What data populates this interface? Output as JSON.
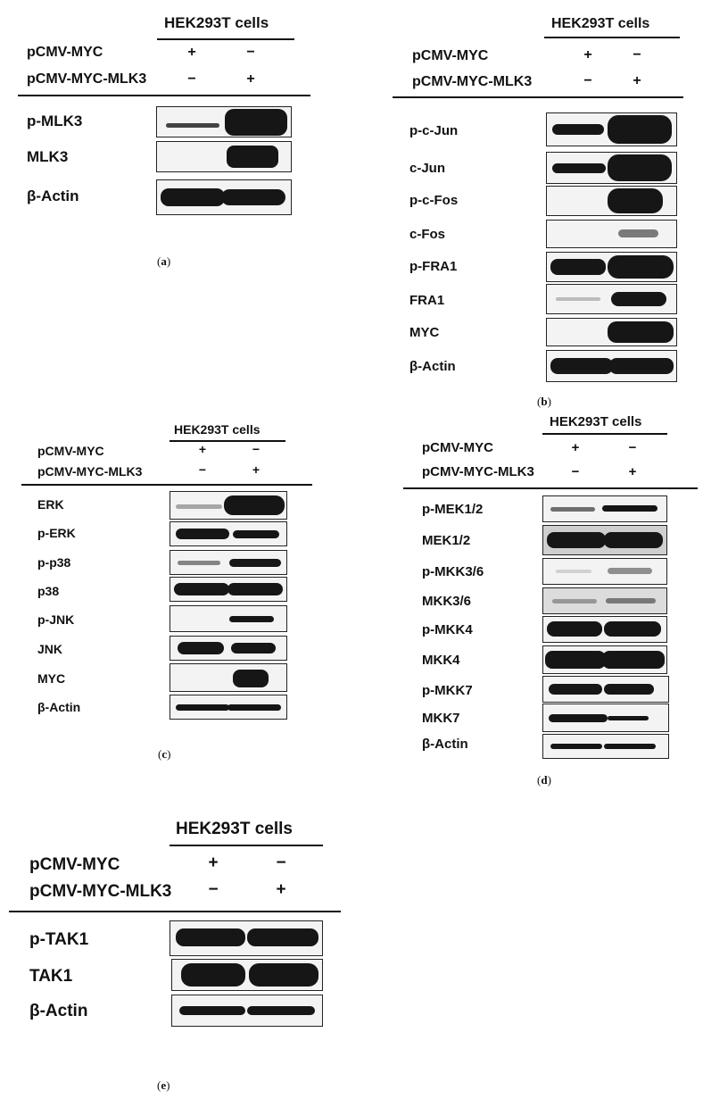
{
  "panels": [
    {
      "id": "a",
      "cell_header": "HEK293T cells",
      "conditions": [
        {
          "label": "pCMV-MYC",
          "lane1": "+",
          "lane2": "−"
        },
        {
          "label": "pCMV-MYC-MLK3",
          "lane1": "−",
          "lane2": "+"
        }
      ],
      "blots": [
        {
          "label": "p-MLK3",
          "lane1_level": 0.35,
          "lane2_level": 1.0
        },
        {
          "label": "MLK3",
          "lane1_level": 0.0,
          "lane2_level": 0.85
        },
        {
          "label": "β-Actin",
          "lane1_level": 0.9,
          "lane2_level": 0.9
        }
      ],
      "caption": "a"
    },
    {
      "id": "b",
      "cell_header": "HEK293T cells",
      "conditions": [
        {
          "label": "pCMV-MYC",
          "lane1": "+",
          "lane2": "−"
        },
        {
          "label": "pCMV-MYC-MLK3",
          "lane1": "−",
          "lane2": "+"
        }
      ],
      "blots": [
        {
          "label": "p-c-Jun",
          "lane1_level": 0.55,
          "lane2_level": 1.0
        },
        {
          "label": "c-Jun",
          "lane1_level": 0.5,
          "lane2_level": 1.0
        },
        {
          "label": "p-c-Fos",
          "lane1_level": 0.0,
          "lane2_level": 0.9
        },
        {
          "label": "c-Fos",
          "lane1_level": 0.0,
          "lane2_level": 0.3
        },
        {
          "label": "p-FRA1",
          "lane1_level": 0.7,
          "lane2_level": 0.95
        },
        {
          "label": "FRA1",
          "lane1_level": 0.05,
          "lane2_level": 0.6
        },
        {
          "label": "MYC",
          "lane1_level": 0.0,
          "lane2_level": 0.9
        },
        {
          "label": "β-Actin",
          "lane1_level": 0.85,
          "lane2_level": 0.85
        }
      ],
      "caption": "b"
    },
    {
      "id": "c",
      "cell_header": "HEK293T cells",
      "conditions": [
        {
          "label": "pCMV-MYC",
          "lane1": "+",
          "lane2": "−"
        },
        {
          "label": "pCMV-MYC-MLK3",
          "lane1": "−",
          "lane2": "+"
        }
      ],
      "blots": [
        {
          "label": "ERK",
          "lane1_level": 0.15,
          "lane2_level": 1.0
        },
        {
          "label": "p-ERK",
          "lane1_level": 0.85,
          "lane2_level": 0.6
        },
        {
          "label": "p-p38",
          "lane1_level": 0.2,
          "lane2_level": 0.6
        },
        {
          "label": "p38",
          "lane1_level": 0.85,
          "lane2_level": 0.85
        },
        {
          "label": "p-JNK",
          "lane1_level": 0.0,
          "lane2_level": 0.5
        },
        {
          "label": "JNK",
          "lane1_level": 0.8,
          "lane2_level": 0.75
        },
        {
          "label": "MYC",
          "lane1_level": 0.0,
          "lane2_level": 0.75
        },
        {
          "label": "β-Actin",
          "lane1_level": 0.7,
          "lane2_level": 0.7
        }
      ],
      "caption": "c"
    },
    {
      "id": "d",
      "cell_header": "HEK293T cells",
      "conditions": [
        {
          "label": "pCMV-MYC",
          "lane1": "+",
          "lane2": "−"
        },
        {
          "label": "pCMV-MYC-MLK3",
          "lane1": "−",
          "lane2": "+"
        }
      ],
      "blots": [
        {
          "label": "p-MEK1/2",
          "lane1_level": 0.3,
          "lane2_level": 0.5
        },
        {
          "label": "MEK1/2",
          "lane1_level": 0.85,
          "lane2_level": 0.85
        },
        {
          "label": "p-MKK3/6",
          "lane1_level": 0.08,
          "lane2_level": 0.3
        },
        {
          "label": "MKK3/6",
          "lane1_level": 0.2,
          "lane2_level": 0.35
        },
        {
          "label": "p-MKK4",
          "lane1_level": 0.85,
          "lane2_level": 0.85
        },
        {
          "label": "MKK4",
          "lane1_level": 0.9,
          "lane2_level": 0.9
        },
        {
          "label": "p-MKK7",
          "lane1_level": 0.7,
          "lane2_level": 0.7
        },
        {
          "label": "MKK7",
          "lane1_level": 0.75,
          "lane2_level": 0.35
        },
        {
          "label": "β-Actin",
          "lane1_level": 0.65,
          "lane2_level": 0.65
        }
      ],
      "caption": "d"
    },
    {
      "id": "e",
      "cell_header": "HEK293T cells",
      "conditions": [
        {
          "label": "pCMV-MYC",
          "lane1": "+",
          "lane2": "−"
        },
        {
          "label": "pCMV-MYC-MLK3",
          "lane1": "−",
          "lane2": "+"
        }
      ],
      "blots": [
        {
          "label": "p-TAK1",
          "lane1_level": 0.8,
          "lane2_level": 0.8
        },
        {
          "label": "TAK1",
          "lane1_level": 0.9,
          "lane2_level": 0.9
        },
        {
          "label": "β-Actin",
          "lane1_level": 0.6,
          "lane2_level": 0.6
        }
      ],
      "caption": "e"
    }
  ]
}
